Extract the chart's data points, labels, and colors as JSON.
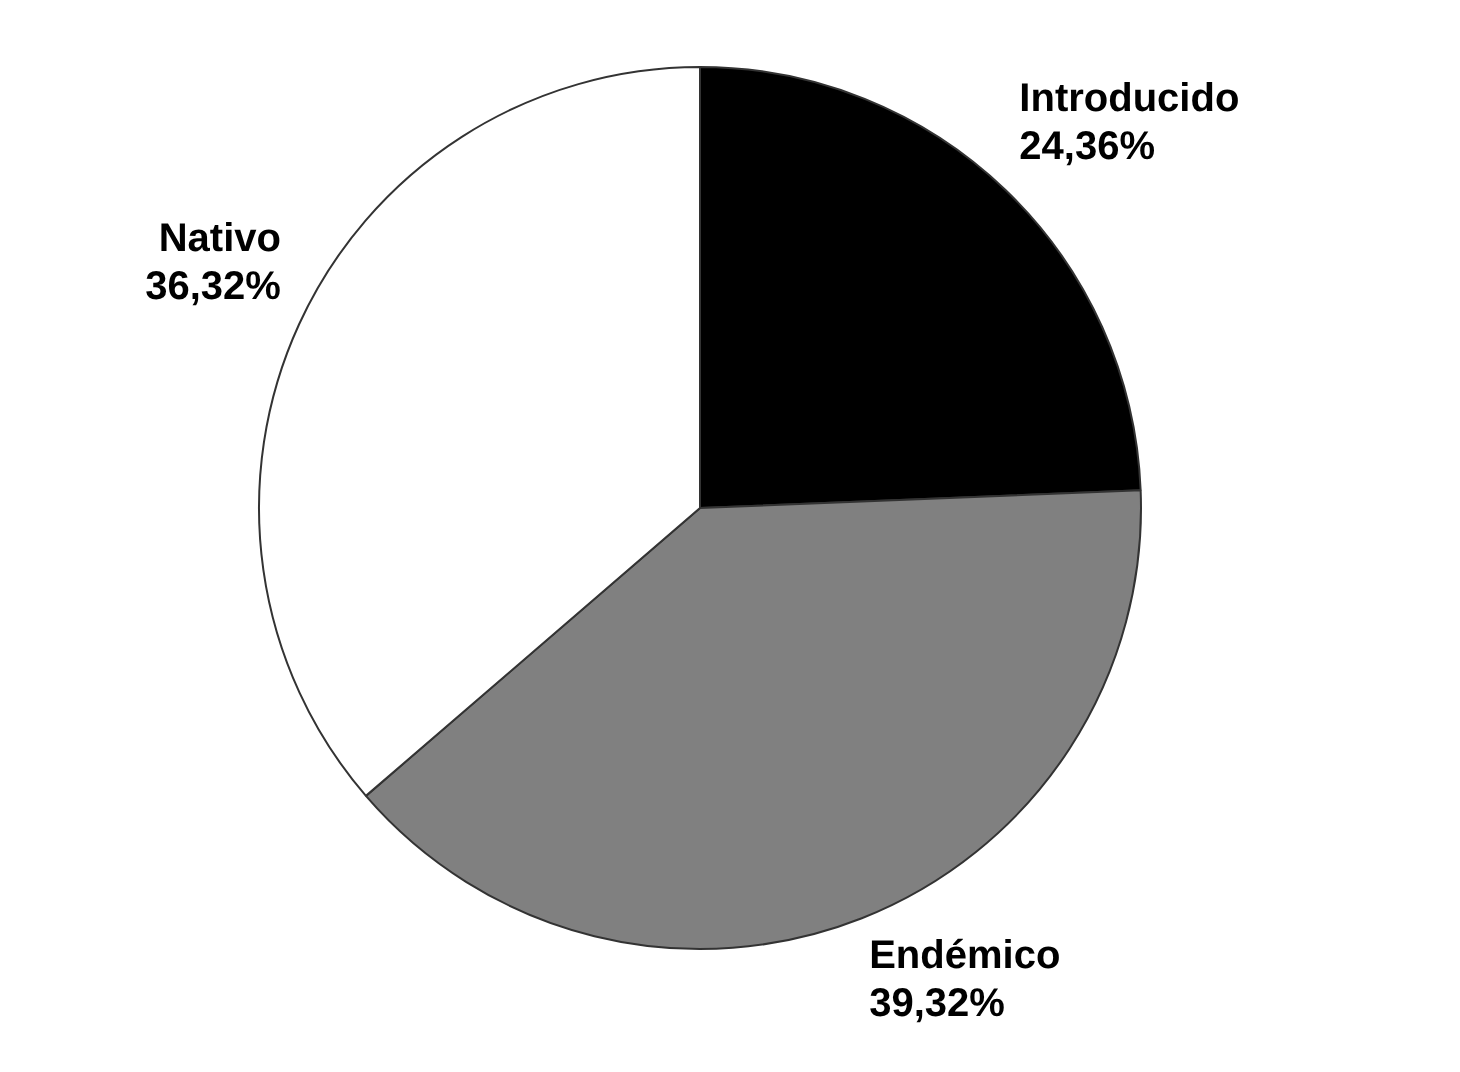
{
  "chart_data": {
    "type": "pie",
    "categories": [
      "Introducido",
      "Endémico",
      "Nativo"
    ],
    "values": [
      24.36,
      39.32,
      36.32
    ],
    "colors": [
      "#000000",
      "#808080",
      "#ffffff"
    ],
    "value_labels": [
      "24,36%",
      "39,32%",
      "36,32%"
    ],
    "legend": false
  }
}
